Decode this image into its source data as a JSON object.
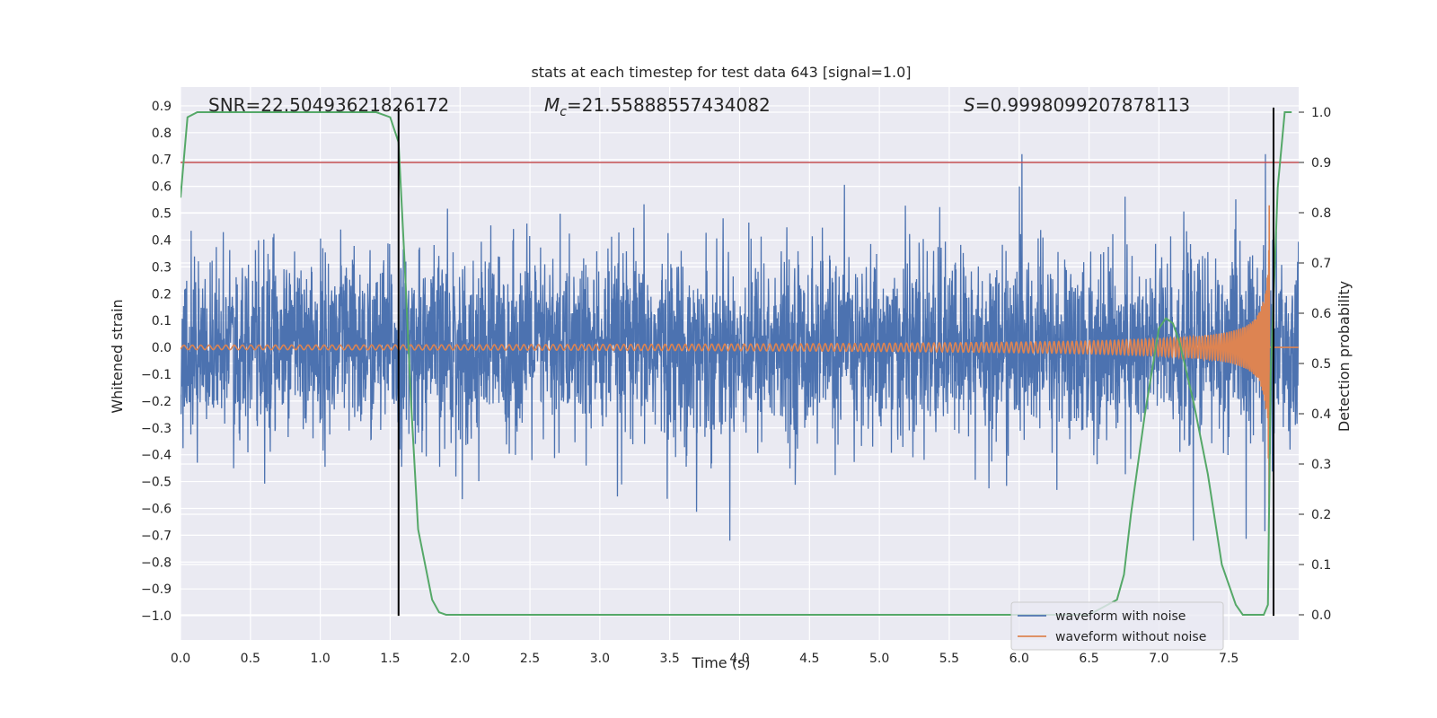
{
  "chart_data": {
    "type": "line",
    "title": "stats at each timestep for test data 643 [signal=1.0]",
    "xlabel": "Time (s)",
    "ylabel": "Whitened strain",
    "ylabel_right": "Detection probability",
    "xlim": [
      0.0,
      8.0
    ],
    "ylim": [
      -1.09,
      0.97
    ],
    "ylim_right": [
      -0.05,
      1.05
    ],
    "x_ticks": [
      "0.0",
      "0.5",
      "1.0",
      "1.5",
      "2.0",
      "2.5",
      "3.0",
      "3.5",
      "4.0",
      "4.5",
      "5.0",
      "5.5",
      "6.0",
      "6.5",
      "7.0",
      "7.5"
    ],
    "y_ticks": [
      "0.9",
      "0.8",
      "0.7",
      "0.6",
      "0.5",
      "0.4",
      "0.3",
      "0.2",
      "0.1",
      "0.0",
      "−0.1",
      "−0.2",
      "−0.3",
      "−0.4",
      "−0.5",
      "−0.6",
      "−0.7",
      "−0.8",
      "−0.9",
      "−1.0"
    ],
    "y_ticks_right": [
      "1.0",
      "0.9",
      "0.8",
      "0.7",
      "0.6",
      "0.5",
      "0.4",
      "0.3",
      "0.2",
      "0.1",
      "0.0"
    ],
    "annotations": {
      "snr": "SNR=22.50493621826172",
      "mc_symbol": "M",
      "mc_sub": "c",
      "mc_value": "=21.55888557434082",
      "s_symbol": "S",
      "s_value": "=0.9998099207878113"
    },
    "series": [
      {
        "name": "waveform with noise",
        "color": "#4c72b0",
        "description_values": "noise amplitude ~0.45, peaks ~0.72, min ~-0.72"
      },
      {
        "name": "waveform without noise",
        "color": "#dd8452",
        "values_desc": "chirp amplitude 0.01 growing to 0.87 at t=7.78"
      },
      {
        "name": "",
        "color": "#55a868",
        "axis": "right",
        "x": [
          0.0,
          0.05,
          0.12,
          0.2,
          0.5,
          1.0,
          1.4,
          1.5,
          1.56,
          1.6,
          1.65,
          1.7,
          1.8,
          1.85,
          1.9,
          2.0,
          3.0,
          4.0,
          5.0,
          6.0,
          6.5,
          6.7,
          6.75,
          6.8,
          6.9,
          7.0,
          7.05,
          7.1,
          7.15,
          7.25,
          7.35,
          7.45,
          7.55,
          7.6,
          7.7,
          7.75,
          7.78,
          7.8,
          7.85,
          7.9,
          7.95
        ],
        "y": [
          0.83,
          0.99,
          1.0,
          1.0,
          1.0,
          1.0,
          1.0,
          0.99,
          0.94,
          0.72,
          0.42,
          0.17,
          0.03,
          0.005,
          0.0,
          0.0,
          0.0,
          0.0,
          0.0,
          0.0,
          0.0,
          0.03,
          0.08,
          0.2,
          0.4,
          0.57,
          0.59,
          0.58,
          0.54,
          0.42,
          0.28,
          0.1,
          0.02,
          0.0,
          0.0,
          0.0,
          0.02,
          0.48,
          0.85,
          1.0,
          1.0
        ]
      }
    ],
    "hlines": [
      {
        "axis": "right",
        "y": 0.9,
        "color": "#c44e52"
      }
    ],
    "vlines": [
      {
        "x": 1.56,
        "color": "#000000"
      },
      {
        "x": 7.82,
        "color": "#000000"
      }
    ],
    "legend_position": "lower right",
    "grid": true
  }
}
